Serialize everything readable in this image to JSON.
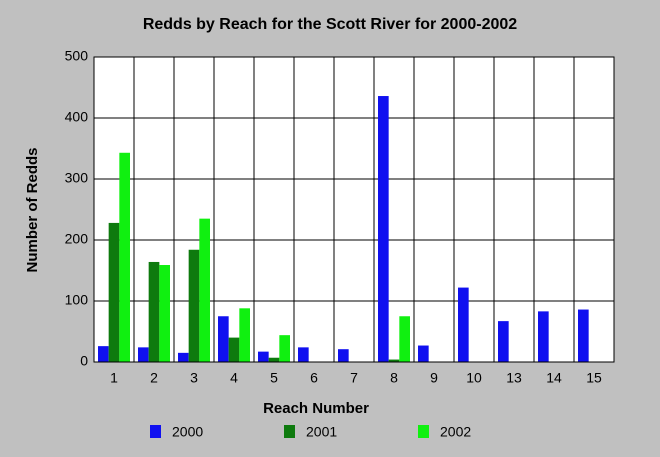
{
  "chart_data": {
    "type": "bar",
    "title": "Redds by Reach for the Scott River for 2000-2002",
    "x_label": "Reach Number",
    "y_label": "Number of Redds",
    "categories": [
      "1",
      "2",
      "3",
      "4",
      "5",
      "6",
      "7",
      "8",
      "9",
      "10",
      "13",
      "14",
      "15"
    ],
    "series": [
      {
        "name": "2000",
        "color": "#1010f0",
        "values": [
          26,
          24,
          15,
          75,
          17,
          24,
          21,
          436,
          27,
          122,
          67,
          83,
          86
        ]
      },
      {
        "name": "2001",
        "color": "#0e7a0e",
        "values": [
          228,
          164,
          184,
          40,
          7,
          0,
          0,
          4,
          0,
          0,
          0,
          0,
          0
        ]
      },
      {
        "name": "2002",
        "color": "#10f010",
        "values": [
          343,
          159,
          235,
          88,
          44,
          0,
          0,
          75,
          0,
          0,
          0,
          0,
          0
        ]
      }
    ],
    "ylim": [
      0,
      500
    ],
    "yticks": [
      0,
      100,
      200,
      300,
      400,
      500
    ],
    "grid": true
  }
}
